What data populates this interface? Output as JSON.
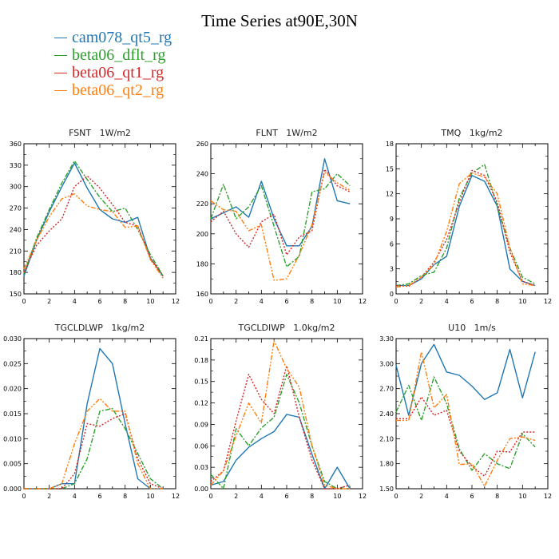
{
  "title": "Time Series at90E,30N",
  "legend": [
    {
      "name": "cam078_qt5_rg",
      "color": "#1f77b4"
    },
    {
      "name": "beta06_dflt_rg",
      "color": "#2ca02c"
    },
    {
      "name": "beta06_qt1_rg",
      "color": "#d62728"
    },
    {
      "name": "beta06_qt2_rg",
      "color": "#ff7f0e"
    }
  ],
  "chart_data": [
    {
      "type": "line",
      "title": "FSNT   1W/m2",
      "x": [
        0,
        1,
        2,
        3,
        4,
        5,
        6,
        7,
        8,
        9,
        10,
        11
      ],
      "xlim": [
        0,
        12
      ],
      "xticks": [
        0,
        2,
        4,
        6,
        8,
        10,
        12
      ],
      "ylim": [
        150,
        360
      ],
      "yticks": [
        "150",
        "180",
        "210",
        "240",
        "270",
        "300",
        "330",
        "360"
      ],
      "series": [
        {
          "name": "cam078_qt5_rg",
          "values": [
            175,
            225,
            265,
            300,
            333,
            298,
            268,
            255,
            250,
            257,
            200,
            175
          ]
        },
        {
          "name": "beta06_dflt_rg",
          "values": [
            178,
            228,
            268,
            305,
            336,
            310,
            285,
            265,
            270,
            240,
            205,
            175
          ]
        },
        {
          "name": "beta06_qt1_rg",
          "values": [
            180,
            218,
            238,
            255,
            300,
            315,
            298,
            275,
            250,
            245,
            200,
            175
          ]
        },
        {
          "name": "beta06_qt2_rg",
          "values": [
            185,
            225,
            258,
            283,
            290,
            273,
            268,
            265,
            243,
            245,
            198,
            172
          ]
        }
      ]
    },
    {
      "type": "line",
      "title": "FLNT   1W/m2",
      "x": [
        0,
        1,
        2,
        3,
        4,
        5,
        6,
        7,
        8,
        9,
        10,
        11
      ],
      "xlim": [
        0,
        12
      ],
      "xticks": [
        0,
        2,
        4,
        6,
        8,
        10,
        12
      ],
      "ylim": [
        160,
        260
      ],
      "yticks": [
        "160",
        "180",
        "200",
        "220",
        "240",
        "260"
      ],
      "series": [
        {
          "name": "cam078_qt5_rg",
          "values": [
            210,
            214,
            218,
            211,
            235,
            210,
            192,
            192,
            205,
            250,
            222,
            220
          ]
        },
        {
          "name": "beta06_dflt_rg",
          "values": [
            210,
            233,
            210,
            218,
            232,
            205,
            178,
            185,
            228,
            230,
            240,
            232
          ]
        },
        {
          "name": "beta06_qt1_rg",
          "values": [
            208,
            215,
            200,
            191,
            208,
            213,
            186,
            198,
            202,
            243,
            232,
            228
          ]
        },
        {
          "name": "beta06_qt2_rg",
          "values": [
            222,
            216,
            215,
            202,
            206,
            169,
            170,
            186,
            206,
            241,
            234,
            229
          ]
        }
      ]
    },
    {
      "type": "line",
      "title": "TMQ   1kg/m2",
      "x": [
        0,
        1,
        2,
        3,
        4,
        5,
        6,
        7,
        8,
        9,
        10,
        11
      ],
      "xlim": [
        0,
        12
      ],
      "xticks": [
        0,
        2,
        4,
        6,
        8,
        10,
        12
      ],
      "ylim": [
        0,
        18
      ],
      "yticks": [
        "0",
        "3",
        "6",
        "9",
        "12",
        "15",
        "18"
      ],
      "series": [
        {
          "name": "cam078_qt5_rg",
          "values": [
            1.0,
            1.0,
            1.8,
            3.5,
            4.5,
            10.5,
            14.2,
            13.5,
            10.5,
            3.0,
            1.5,
            1.0
          ]
        },
        {
          "name": "beta06_dflt_rg",
          "values": [
            1.0,
            1.2,
            2.2,
            2.6,
            5.5,
            11.5,
            14.5,
            15.5,
            10.5,
            5.5,
            2.0,
            1.2
          ]
        },
        {
          "name": "beta06_qt1_rg",
          "values": [
            1.0,
            0.9,
            2.0,
            3.8,
            6.5,
            11.0,
            14.8,
            14.2,
            11.0,
            5.0,
            1.5,
            1.0
          ]
        },
        {
          "name": "beta06_qt2_rg",
          "values": [
            0.8,
            1.0,
            2.0,
            3.5,
            7.5,
            13.2,
            14.5,
            14.0,
            12.0,
            5.5,
            1.2,
            1.0
          ]
        }
      ]
    },
    {
      "type": "line",
      "title": "TGCLDLWP   1kg/m2",
      "x": [
        0,
        1,
        2,
        3,
        4,
        5,
        6,
        7,
        8,
        9,
        10,
        11
      ],
      "xlim": [
        0,
        12
      ],
      "xticks": [
        0,
        2,
        4,
        6,
        8,
        10,
        12
      ],
      "ylim": [
        0,
        0.03
      ],
      "yticks": [
        "0.000",
        "0.005",
        "0.010",
        "0.015",
        "0.020",
        "0.025",
        "0.030"
      ],
      "series": [
        {
          "name": "cam078_qt5_rg",
          "values": [
            0.0,
            0.0,
            0.0,
            0.001,
            0.001,
            0.017,
            0.028,
            0.025,
            0.013,
            0.002,
            0.0,
            0.0
          ]
        },
        {
          "name": "beta06_dflt_rg",
          "values": [
            0.0,
            0.0,
            0.0,
            0.0,
            0.001,
            0.006,
            0.0155,
            0.016,
            0.012,
            0.007,
            0.002,
            0.0
          ]
        },
        {
          "name": "beta06_qt1_rg",
          "values": [
            0.0,
            0.0,
            0.0,
            0.0,
            0.003,
            0.013,
            0.0125,
            0.014,
            0.015,
            0.006,
            0.001,
            0.0
          ]
        },
        {
          "name": "beta06_qt2_rg",
          "values": [
            0.0,
            0.0,
            0.0,
            0.001,
            0.009,
            0.0155,
            0.018,
            0.0155,
            0.0155,
            0.005,
            0.0,
            0.0
          ]
        }
      ]
    },
    {
      "type": "line",
      "title": "TGCLDIWP   1.0kg/m2",
      "x": [
        0,
        1,
        2,
        3,
        4,
        5,
        6,
        7,
        8,
        9,
        10,
        11
      ],
      "xlim": [
        0,
        12
      ],
      "xticks": [
        0,
        2,
        4,
        6,
        8,
        10,
        12
      ],
      "ylim": [
        0,
        0.21
      ],
      "yticks": [
        "0.00",
        "0.03",
        "0.06",
        "0.09",
        "0.12",
        "0.15",
        "0.18",
        "0.21"
      ],
      "series": [
        {
          "name": "cam078_qt5_rg",
          "values": [
            0.005,
            0.01,
            0.04,
            0.058,
            0.07,
            0.08,
            0.104,
            0.1,
            0.048,
            0.0,
            0.03,
            0.0
          ]
        },
        {
          "name": "beta06_dflt_rg",
          "values": [
            0.02,
            0.0,
            0.084,
            0.06,
            0.085,
            0.1,
            0.16,
            0.12,
            0.06,
            0.01,
            0.0,
            0.005
          ]
        },
        {
          "name": "beta06_qt1_rg",
          "values": [
            0.01,
            0.025,
            0.095,
            0.16,
            0.125,
            0.105,
            0.172,
            0.1,
            0.04,
            0.0,
            0.0,
            0.005
          ]
        },
        {
          "name": "beta06_qt2_rg",
          "values": [
            0.005,
            0.025,
            0.074,
            0.12,
            0.092,
            0.207,
            0.168,
            0.142,
            0.06,
            0.005,
            0.0,
            0.0
          ]
        }
      ]
    },
    {
      "type": "line",
      "title": "U10   1m/s",
      "x": [
        0,
        1,
        2,
        3,
        4,
        5,
        6,
        7,
        8,
        9,
        10,
        11
      ],
      "xlim": [
        0,
        12
      ],
      "xticks": [
        0,
        2,
        4,
        6,
        8,
        10,
        12
      ],
      "ylim": [
        1.5,
        3.3
      ],
      "yticks": [
        "1.50",
        "1.80",
        "2.10",
        "2.40",
        "2.70",
        "3.00",
        "3.30"
      ],
      "series": [
        {
          "name": "cam078_qt5_rg",
          "values": [
            2.98,
            2.38,
            3.0,
            3.23,
            2.9,
            2.86,
            2.73,
            2.57,
            2.65,
            3.17,
            2.59,
            3.14
          ]
        },
        {
          "name": "beta06_dflt_rg",
          "values": [
            2.42,
            2.74,
            2.32,
            2.84,
            2.52,
            1.98,
            1.72,
            1.92,
            1.8,
            1.74,
            2.16,
            2.0
          ]
        },
        {
          "name": "beta06_qt1_rg",
          "values": [
            2.34,
            2.34,
            2.6,
            2.38,
            2.44,
            1.95,
            1.77,
            1.65,
            1.95,
            1.94,
            2.18,
            2.18
          ]
        },
        {
          "name": "beta06_qt2_rg",
          "values": [
            2.32,
            2.32,
            3.14,
            2.47,
            2.63,
            1.79,
            1.8,
            1.53,
            1.84,
            2.1,
            2.12,
            2.08
          ]
        }
      ]
    }
  ]
}
